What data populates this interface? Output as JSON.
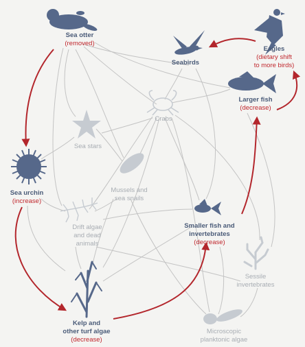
{
  "colors": {
    "node": "#56688a",
    "faded_node": "#c6cbd1",
    "red_arrow": "#b3262c",
    "grey_link": "#c3c3c3",
    "background": "#f4f4f2"
  },
  "nodes": {
    "sea_otter": {
      "name": "Sea otter",
      "status": "(removed)"
    },
    "seabirds": {
      "name": "Seabirds"
    },
    "eagles": {
      "name": "Eagles",
      "status_1": "(dietary shift",
      "status_2": "to more birds)"
    },
    "larger_fish": {
      "name": "Larger fish",
      "status": "(decrease)"
    },
    "crabs": {
      "name": "Crabs"
    },
    "sea_stars": {
      "name": "Sea stars"
    },
    "sea_urchin": {
      "name": "Sea urchin",
      "status": "(increase)"
    },
    "mussels": {
      "name_1": "Mussels and",
      "name_2": "sea snails"
    },
    "drift_algae": {
      "name_1": "Drift algae",
      "name_2": "and dead",
      "name_3": "animals"
    },
    "smaller_fish": {
      "name_1": "Smaller fish and",
      "name_2": "invertebrates",
      "status": "(decrease)"
    },
    "sessile": {
      "name_1": "Sessile",
      "name_2": "invertebrates"
    },
    "kelp": {
      "name_1": "Kelp and",
      "name_2": "other turf algae",
      "status": "(decrease)"
    },
    "plankton": {
      "name_1": "Microscopic",
      "name_2": "planktonic algae"
    }
  },
  "icons": {
    "sea_otter": "otter-silhouette",
    "seabirds": "seabird-silhouette",
    "eagles": "eagle-silhouette",
    "larger_fish": "fish-silhouette",
    "crabs": "crab-outline",
    "sea_stars": "starfish-silhouette",
    "sea_urchin": "urchin-silhouette",
    "mussels": "mussel-silhouette",
    "drift_algae": "drift-algae-outline",
    "smaller_fish": "small-fish-silhouette",
    "sessile": "coral-outline",
    "kelp": "kelp-silhouette",
    "plankton": "plankton-silhouette"
  }
}
